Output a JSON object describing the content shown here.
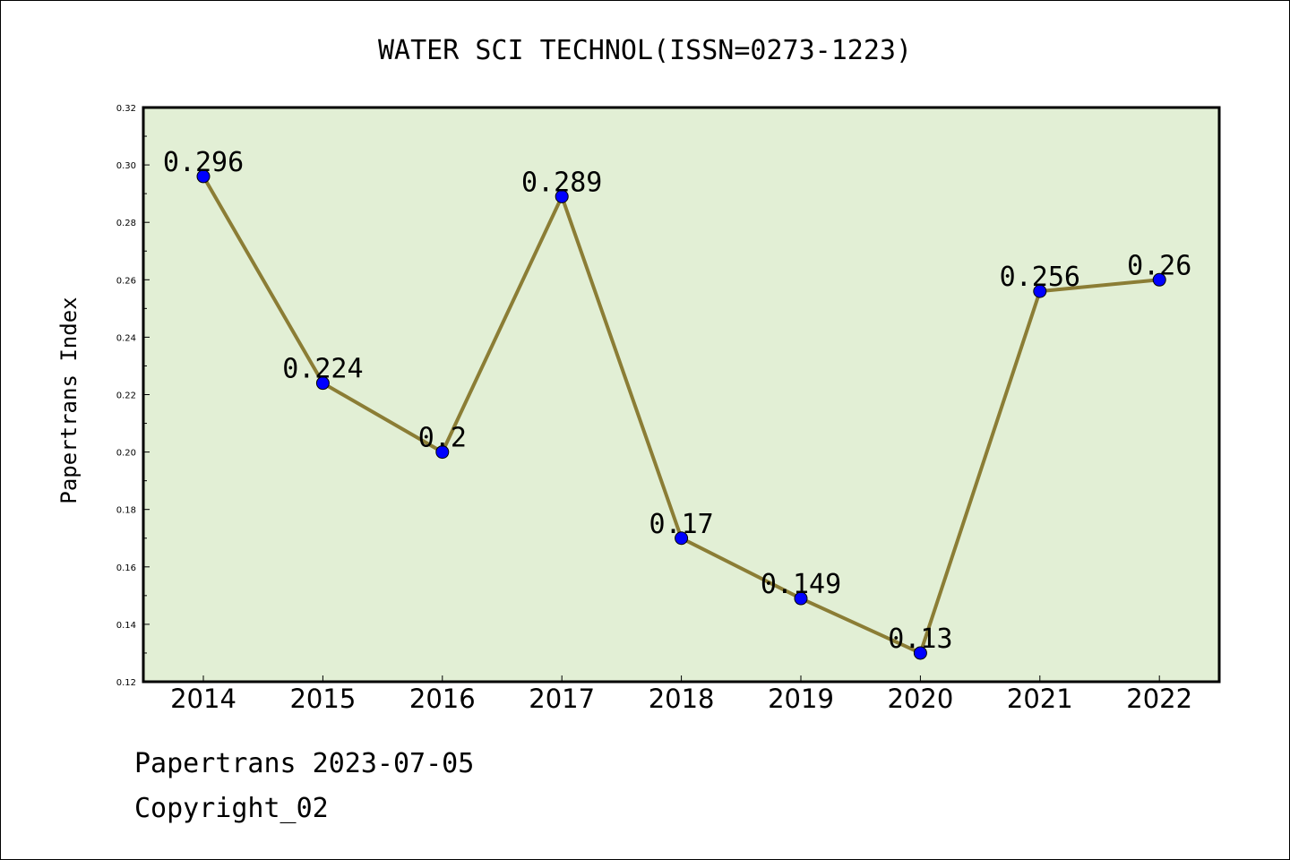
{
  "chart_data": {
    "type": "line",
    "title": "WATER SCI TECHNOL(ISSN=0273-1223)",
    "ylabel": "Papertrans Index",
    "xlabel": "",
    "categories": [
      "2014",
      "2015",
      "2016",
      "2017",
      "2018",
      "2019",
      "2020",
      "2021",
      "2022"
    ],
    "values": [
      0.296,
      0.224,
      0.2,
      0.289,
      0.17,
      0.149,
      0.13,
      0.256,
      0.26
    ],
    "data_labels": [
      "0.296",
      "0.224",
      "0.2",
      "0.289",
      "0.17",
      "0.149",
      "0.13",
      "0.256",
      "0.26"
    ],
    "ylim": [
      0.12,
      0.32
    ],
    "yticks": [
      "0.12",
      "0.14",
      "0.16",
      "0.18",
      "0.20",
      "0.22",
      "0.24",
      "0.26",
      "0.28",
      "0.30",
      "0.32"
    ],
    "grid": false,
    "legend": "none",
    "colors": {
      "plot_background": "#e2efd5",
      "line": "#8b7d35",
      "marker": "#0000ff"
    }
  },
  "footer": {
    "line1": "Papertrans 2023-07-05",
    "line2": "Copyright_02"
  }
}
